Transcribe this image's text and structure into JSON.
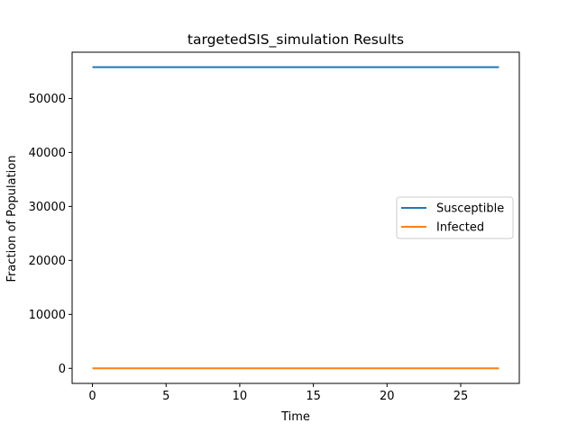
{
  "chart_data": {
    "type": "line",
    "title": "targetedSIS_simulation Results",
    "xlabel": "Time",
    "ylabel": "Fraction of Population",
    "xlim": [
      -1.38,
      28.98
    ],
    "ylim": [
      -2790,
      58580
    ],
    "xticks": [
      0,
      5,
      10,
      15,
      20,
      25
    ],
    "yticks": [
      0,
      10000,
      20000,
      30000,
      40000,
      50000
    ],
    "grid": false,
    "legend": "center-right",
    "series": [
      {
        "name": "Susceptible",
        "color": "#1f77b4",
        "x": [
          0,
          27.6
        ],
        "y": [
          55800,
          55800
        ]
      },
      {
        "name": "Infected",
        "color": "#ff7f0e",
        "x": [
          0,
          27.6
        ],
        "y": [
          0,
          0
        ]
      }
    ]
  }
}
